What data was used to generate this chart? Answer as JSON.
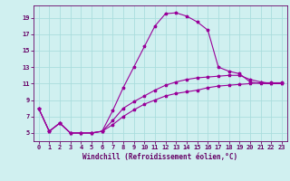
{
  "xlabel": "Windchill (Refroidissement éolien,°C)",
  "bg_color": "#d0f0f0",
  "line_color": "#990099",
  "grid_color": "#aadddd",
  "axis_color": "#660066",
  "x_ticks": [
    0,
    1,
    2,
    3,
    4,
    5,
    6,
    7,
    8,
    9,
    10,
    11,
    12,
    13,
    14,
    15,
    16,
    17,
    18,
    19,
    20,
    21,
    22,
    23
  ],
  "y_ticks": [
    5,
    7,
    9,
    11,
    13,
    15,
    17,
    19
  ],
  "ylim": [
    4.0,
    20.5
  ],
  "xlim": [
    -0.5,
    23.5
  ],
  "series1_x": [
    0,
    1,
    2,
    3,
    4,
    5,
    6,
    7,
    8,
    9,
    10,
    11,
    12,
    13,
    14,
    15,
    16,
    17,
    18,
    19,
    20,
    21,
    22,
    23
  ],
  "series1_y": [
    8.0,
    5.2,
    6.2,
    5.0,
    5.0,
    5.0,
    5.2,
    7.7,
    10.5,
    13.0,
    15.5,
    18.0,
    19.5,
    19.6,
    19.2,
    18.5,
    17.5,
    13.0,
    12.5,
    12.2,
    11.2,
    11.0,
    11.0,
    11.0
  ],
  "series2_x": [
    0,
    1,
    2,
    3,
    4,
    5,
    6,
    7,
    8,
    9,
    10,
    11,
    12,
    13,
    14,
    15,
    16,
    17,
    18,
    19,
    20,
    21,
    22,
    23
  ],
  "series2_y": [
    8.0,
    5.2,
    6.2,
    5.0,
    5.0,
    5.0,
    5.2,
    6.5,
    8.0,
    8.8,
    9.5,
    10.2,
    10.8,
    11.2,
    11.5,
    11.7,
    11.8,
    11.9,
    12.0,
    12.0,
    11.5,
    11.2,
    11.0,
    11.0
  ],
  "series3_x": [
    0,
    1,
    2,
    3,
    4,
    5,
    6,
    7,
    8,
    9,
    10,
    11,
    12,
    13,
    14,
    15,
    16,
    17,
    18,
    19,
    20,
    21,
    22,
    23
  ],
  "series3_y": [
    8.0,
    5.2,
    6.2,
    5.0,
    5.0,
    5.0,
    5.2,
    6.0,
    7.0,
    7.8,
    8.5,
    9.0,
    9.5,
    9.8,
    10.0,
    10.2,
    10.5,
    10.7,
    10.8,
    10.9,
    11.0,
    11.1,
    11.1,
    11.1
  ],
  "tick_fontsize": 5.0,
  "xlabel_fontsize": 5.5,
  "marker_size": 2.5,
  "line_width": 0.8
}
